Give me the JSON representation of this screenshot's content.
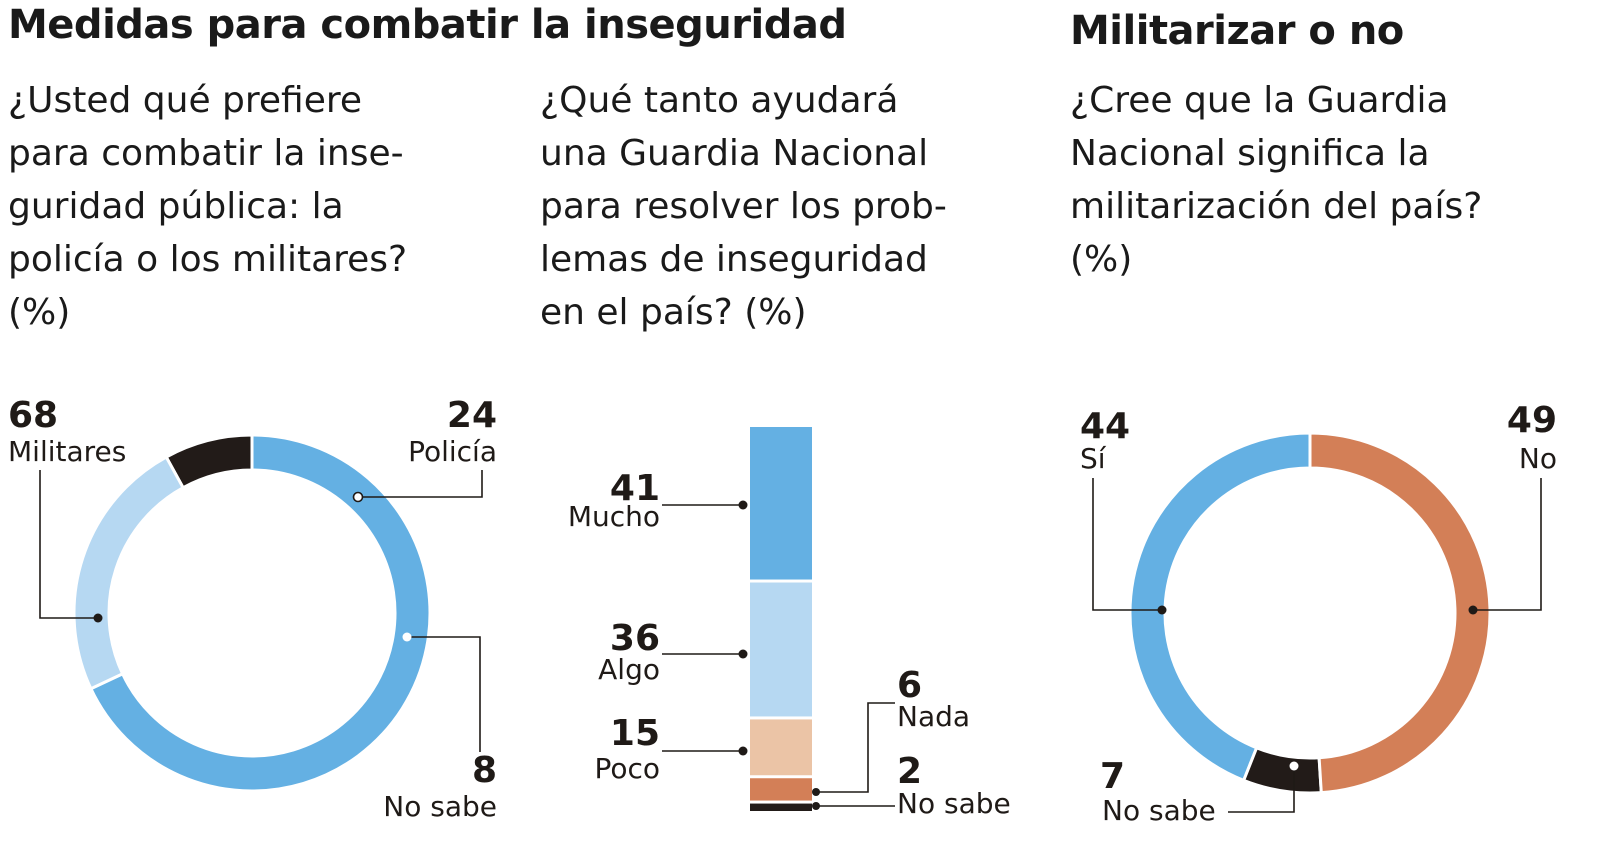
{
  "heading_left": "Medidas para combatir la inseguridad",
  "heading_right": "Militarizar o no",
  "questions": {
    "q1": [
      "¿Usted qué prefiere",
      "para combatir la inse-",
      "guridad pública: la",
      "policía o los militares?",
      "(%)"
    ],
    "q2": [
      "¿Qué tanto ayudará",
      "una Guardia Nacional",
      "para resolver los prob-",
      "lemas de inseguridad",
      "en el país? (%)"
    ],
    "q3": [
      "¿Cree que la Guardia",
      "Nacional significa la",
      "militarización del país?",
      "(%)"
    ]
  },
  "colors": {
    "blue": "#64b0e3",
    "light_blue": "#b6d8f2",
    "black": "#221b18",
    "peach": "#ebc4a6",
    "orange": "#d37f57"
  },
  "chart_data": [
    {
      "type": "pie",
      "variant": "donut",
      "slices": [
        {
          "label": "Militares",
          "value": 68,
          "color": "#64b0e3"
        },
        {
          "label": "Policía",
          "value": 24,
          "color": "#b6d8f2"
        },
        {
          "label": "No sabe",
          "value": 8,
          "color": "#221b18"
        }
      ]
    },
    {
      "type": "bar",
      "variant": "stacked-vertical",
      "categories": [
        "Mucho",
        "Algo",
        "Poco",
        "Nada",
        "No sabe"
      ],
      "values": [
        41,
        36,
        15,
        6,
        2
      ],
      "colors": [
        "#64b0e3",
        "#b6d8f2",
        "#ebc4a6",
        "#d37f57",
        "#221b18"
      ]
    },
    {
      "type": "pie",
      "variant": "donut",
      "slices": [
        {
          "label": "No",
          "value": 49,
          "color": "#d37f57"
        },
        {
          "label": "No sabe",
          "value": 7,
          "color": "#221b18"
        },
        {
          "label": "Sí",
          "value": 44,
          "color": "#64b0e3"
        }
      ]
    }
  ]
}
